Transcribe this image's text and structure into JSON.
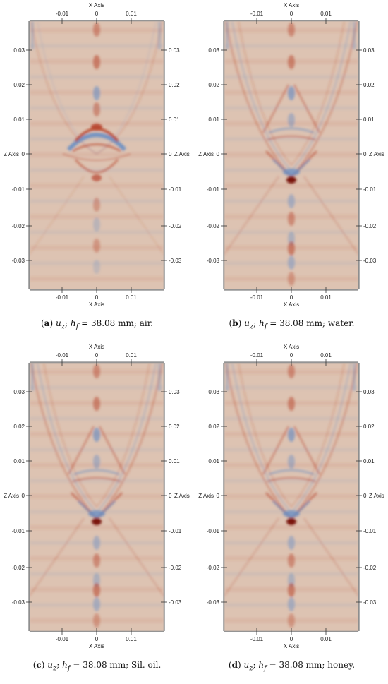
{
  "axis_titles": {
    "x": "X Axis",
    "z": "Z Axis"
  },
  "x_ticks": [
    "-0.01",
    "0",
    "0.01"
  ],
  "z_ticks": [
    "0.03",
    "0.02",
    "0.01",
    "0",
    "-0.01",
    "-0.02",
    "-0.03"
  ],
  "colors": {
    "background": "#ddc3b2",
    "positive": "#b8442c",
    "negative": "#6a8fc4"
  },
  "panels": [
    {
      "label": "a",
      "variable": "u",
      "subscript": "z",
      "param": "h",
      "param_subscript": "f",
      "value": "= 38.08 mm;",
      "medium": "air."
    },
    {
      "label": "b",
      "variable": "u",
      "subscript": "z",
      "param": "h",
      "param_subscript": "f",
      "value": "= 38.08 mm;",
      "medium": "water."
    },
    {
      "label": "c",
      "variable": "u",
      "subscript": "z",
      "param": "h",
      "param_subscript": "f",
      "value": "= 38.08 mm;",
      "medium": "Sil. oil."
    },
    {
      "label": "d",
      "variable": "u",
      "subscript": "z",
      "param": "h",
      "param_subscript": "f",
      "value": "= 38.08 mm;",
      "medium": "honey."
    }
  ]
}
